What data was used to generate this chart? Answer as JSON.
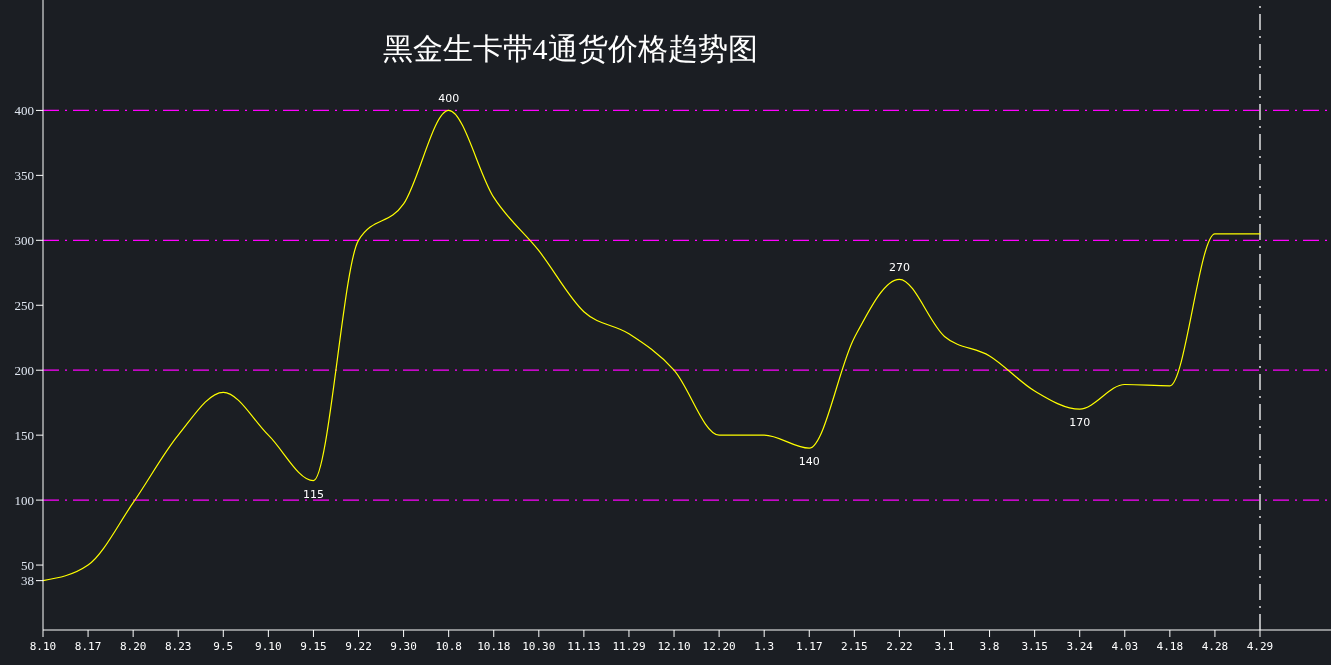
{
  "chart_data": {
    "type": "line",
    "title": "黑金生卡带4通货价格趋势图",
    "categories": [
      "8.10",
      "8.17",
      "8.20",
      "8.23",
      "9.5",
      "9.10",
      "9.15",
      "9.22",
      "9.30",
      "10.8",
      "10.18",
      "10.30",
      "11.13",
      "11.29",
      "12.10",
      "12.20",
      "1.3",
      "1.17",
      "2.15",
      "2.22",
      "3.1",
      "3.8",
      "3.15",
      "3.24",
      "4.03",
      "4.18",
      "4.28",
      "4.29"
    ],
    "series": [
      {
        "color": "#ffff00",
        "values": [
          38,
          50,
          98,
          150,
          183,
          150,
          115,
          300,
          328,
          400,
          333,
          292,
          245,
          228,
          200,
          150,
          150,
          140,
          225,
          270,
          226,
          211,
          184,
          170,
          189,
          188,
          305,
          305
        ],
        "value_labels": [
          null,
          null,
          null,
          null,
          null,
          null,
          "115",
          null,
          null,
          "400",
          null,
          null,
          null,
          null,
          null,
          null,
          null,
          "140",
          null,
          "270",
          null,
          null,
          null,
          "170",
          null,
          null,
          null,
          null
        ]
      }
    ],
    "ylim": [
      0,
      485
    ],
    "yticks": [
      38,
      50,
      100,
      150,
      200,
      250,
      300,
      350,
      400
    ],
    "ref_lines": [
      {
        "axis": "y",
        "value": 100,
        "color": "#ff00ff",
        "line_style": "dashed"
      },
      {
        "axis": "y",
        "value": 200,
        "color": "#ff00ff",
        "line_style": "dashed"
      },
      {
        "axis": "y",
        "value": 300,
        "color": "#ff00ff",
        "line_style": "dashed"
      },
      {
        "axis": "y",
        "value": 400,
        "color": "#ff00ff",
        "line_style": "dashed"
      },
      {
        "axis": "x",
        "value": "4.29",
        "color": "#ffffff",
        "line_style": "dashed"
      }
    ]
  }
}
